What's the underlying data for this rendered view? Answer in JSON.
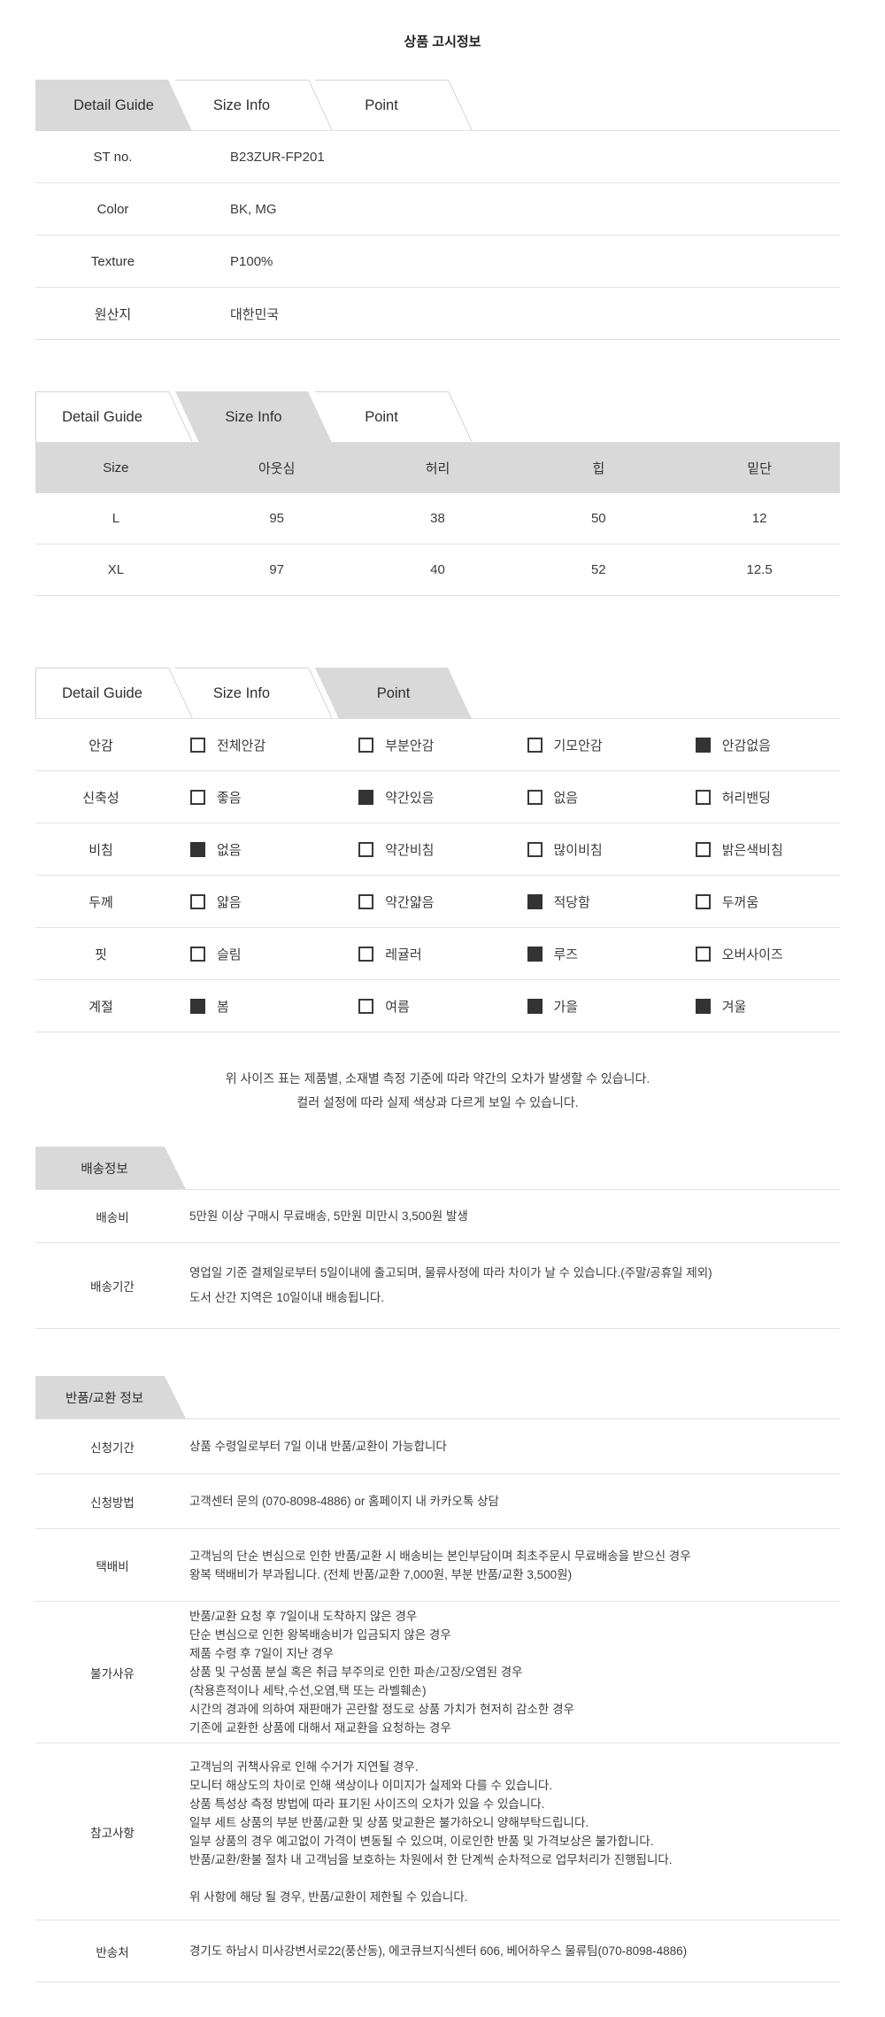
{
  "page": {
    "title": "상품 고시정보"
  },
  "colors": {
    "accent_gray": "#d9d9d9",
    "row_line": "#e3e3e3",
    "text": "#333333"
  },
  "tab_bars": [
    {
      "active": "Detail Guide",
      "tabs": [
        "Detail Guide",
        "Size Info",
        "Point"
      ]
    },
    {
      "active": "Size Info",
      "tabs": [
        "Detail Guide",
        "Size Info",
        "Point"
      ]
    },
    {
      "active": "Point",
      "tabs": [
        "Detail Guide",
        "Size Info",
        "Point"
      ]
    }
  ],
  "detail_table": {
    "rows": [
      {
        "label": "ST no.",
        "value": "B23ZUR-FP201"
      },
      {
        "label": "Color",
        "value": "BK, MG"
      },
      {
        "label": "Texture",
        "value": "P100%"
      },
      {
        "label": "원산지",
        "value": "대한민국"
      }
    ]
  },
  "size_table": {
    "headers": [
      "Size",
      "아웃심",
      "허리",
      "힙",
      "밑단"
    ],
    "rows": [
      [
        "L",
        "95",
        "38",
        "50",
        "12"
      ],
      [
        "XL",
        "97",
        "40",
        "52",
        "12.5"
      ]
    ]
  },
  "options_table": {
    "rows": [
      {
        "label": "안감",
        "options": [
          {
            "text": "전체안감",
            "checked": false
          },
          {
            "text": "부분안감",
            "checked": false
          },
          {
            "text": "기모안감",
            "checked": false
          },
          {
            "text": "안감없음",
            "checked": true
          }
        ]
      },
      {
        "label": "신축성",
        "options": [
          {
            "text": "좋음",
            "checked": false
          },
          {
            "text": "약간있음",
            "checked": true
          },
          {
            "text": "없음",
            "checked": false
          },
          {
            "text": "허리밴딩",
            "checked": false
          }
        ]
      },
      {
        "label": "비침",
        "options": [
          {
            "text": "없음",
            "checked": true
          },
          {
            "text": "약간비침",
            "checked": false
          },
          {
            "text": "많이비침",
            "checked": false
          },
          {
            "text": "밝은색비침",
            "checked": false
          }
        ]
      },
      {
        "label": "두께",
        "options": [
          {
            "text": "얇음",
            "checked": false
          },
          {
            "text": "약간얇음",
            "checked": false
          },
          {
            "text": "적당함",
            "checked": true
          },
          {
            "text": "두꺼움",
            "checked": false
          }
        ]
      },
      {
        "label": "핏",
        "options": [
          {
            "text": "슬림",
            "checked": false
          },
          {
            "text": "레귤러",
            "checked": false
          },
          {
            "text": "루즈",
            "checked": true
          },
          {
            "text": "오버사이즈",
            "checked": false
          }
        ]
      },
      {
        "label": "계절",
        "options": [
          {
            "text": "봄",
            "checked": true
          },
          {
            "text": "여름",
            "checked": false
          },
          {
            "text": "가을",
            "checked": true
          },
          {
            "text": "겨울",
            "checked": true
          }
        ]
      }
    ]
  },
  "size_notice": {
    "line1": "위 사이즈 표는 제품별, 소재별 측정 기준에 따라 약간의 오차가 발생할 수 있습니다.",
    "line2": "컬러 설정에 따라 실제 색상과 다르게 보일 수 있습니다."
  },
  "shipping": {
    "title": "배송정보",
    "rows": [
      {
        "label": "배송비",
        "lines": [
          "5만원 이상 구매시 무료배송, 5만원 미만시 3,500원 발생"
        ]
      },
      {
        "label": "배송기간",
        "lines": [
          "영업일 기준 결제일로부터 5일이내에 출고되며, 물류사정에 따라 차이가 날 수 있습니다.(주말/공휴일 제외)",
          "도서 산간 지역은 10일이내 배송됩니다."
        ]
      }
    ]
  },
  "returns": {
    "title": "반품/교환 정보",
    "rows": [
      {
        "label": "신청기간",
        "lines": [
          "상품 수령일로부터 7일 이내 반품/교환이 가능합니다"
        ]
      },
      {
        "label": "신청방법",
        "lines": [
          "고객센터 문의 (070-8098-4886) or 홈페이지 내 카카오톡 상담"
        ]
      },
      {
        "label": "택배비",
        "lines": [
          "고객님의 단순 변심으로 인한 반품/교환 시 배송비는 본인부담이며 최초주문시 무료배송을 받으신 경우",
          "왕복 택배비가 부과됩니다. (전체 반품/교환 7,000원, 부분 반품/교환 3,500원)"
        ]
      },
      {
        "label": "불가사유",
        "lines": [
          "반품/교환 요청 후 7일이내 도착하지 않은 경우",
          "단순 변심으로 인한 왕복배송비가 입금되지 않은 경우",
          "제품 수령 후 7일이 지난 경우",
          "상품 및 구성품 분실 혹은 취급 부주의로 인한 파손/고장/오염된 경우",
          "(착용흔적이나 세탁,수선,오염,택 또는 라벨훼손)",
          "시간의 경과에 의하여 재판매가 곤란할 정도로 상품 가치가 현저히 감소한 경우",
          "기존에 교환한 상품에 대해서 재교환을 요청하는 경우"
        ]
      },
      {
        "label": "참고사항",
        "lines": [
          "고객님의 귀책사유로 인해 수거가 지연될 경우.",
          "모니터 해상도의 차이로 인해 색상이나 이미지가 실제와 다를 수 있습니다.",
          "상품 특성상 측정 방법에 따라 표기된 사이즈의 오차가 있을 수 있습니다.",
          "일부 세트 상품의 부분 반품/교환 및 상품 맞교환은 불가하오니 양해부탁드립니다.",
          "일부 상품의 경우 예고없이 가격이 변동될 수 있으며, 이로인한 반품 및 가격보상은 불가합니다.",
          "반품/교환/환불 절차 내 고객님을 보호하는 차원에서 한 단계씩 순차적으로 업무처리가 진행됩니다.",
          "",
          "위 사항에 해당 될 경우, 반품/교환이 제한될 수 있습니다."
        ]
      },
      {
        "label": "반송처",
        "lines": [
          "경기도 하남시 미사강변서로22(풍산동), 에코큐브지식센터 606, 베어하우스 물류팀(070-8098-4886)"
        ]
      }
    ]
  }
}
